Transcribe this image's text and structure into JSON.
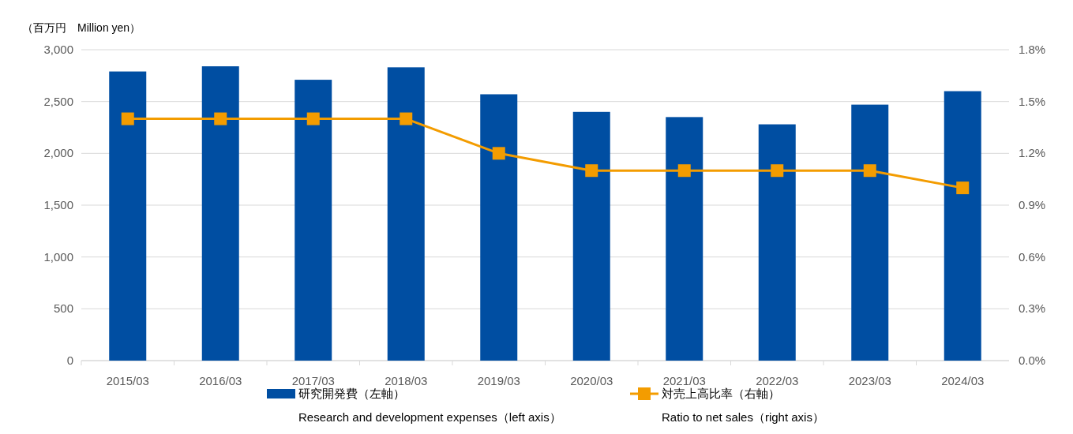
{
  "chart_data": {
    "type": "bar",
    "ylabel": "（百万円　Million yen）",
    "categories": [
      "2015/03",
      "2016/03",
      "2017/03",
      "2018/03",
      "2019/03",
      "2020/03",
      "2021/03",
      "2022/03",
      "2023/03",
      "2024/03"
    ],
    "series": [
      {
        "name": "研究開発費（左軸）\nResearch and development expenses（left axis）",
        "color": "#004ea2",
        "values": [
          2790,
          2840,
          2710,
          2830,
          2570,
          2400,
          2350,
          2280,
          2470,
          2600
        ]
      },
      {
        "name": "対売上高比率（右軸）\nRatio to net sales（right axis）",
        "type": "line",
        "axis": "y2",
        "color": "#f39c00",
        "marker": "square",
        "values": [
          1.4,
          1.4,
          1.4,
          1.4,
          1.2,
          1.1,
          1.1,
          1.1,
          1.1,
          1.0
        ]
      }
    ],
    "ylim": [
      0,
      3000
    ],
    "yticks": [
      0,
      500,
      {
        "value": 1000,
        "label": "1,000"
      },
      {
        "value": 1500,
        "label": "1,500"
      },
      {
        "value": 2000,
        "label": "2,000"
      },
      {
        "value": 2500,
        "label": "2,500"
      },
      {
        "value": 3000,
        "label": "3,000"
      }
    ],
    "y2lim": [
      0,
      1.8
    ],
    "y2ticks": [
      {
        "value": 0,
        "label": "0.0%"
      },
      {
        "value": 0.3,
        "label": "0.3%"
      },
      {
        "value": 0.6,
        "label": "0.6%"
      },
      {
        "value": 0.9,
        "label": "0.9%"
      },
      {
        "value": 1.2,
        "label": "1.2%"
      },
      {
        "value": 1.5,
        "label": "1.5%"
      },
      {
        "value": 1.8,
        "label": "1.8%"
      }
    ],
    "grid": "y",
    "legend": "bottom"
  }
}
